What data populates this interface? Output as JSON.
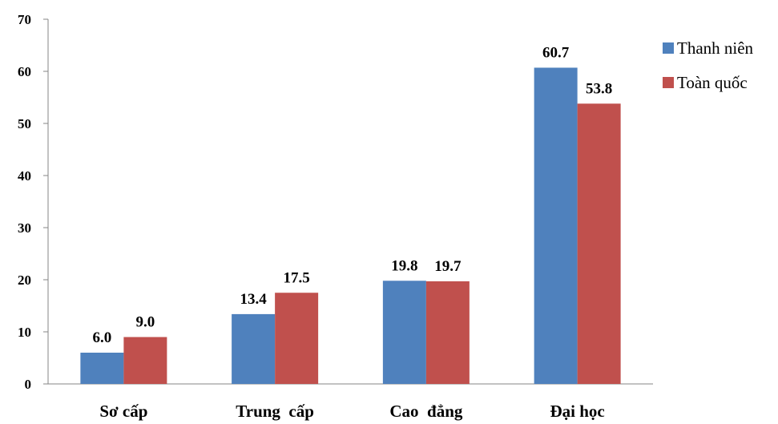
{
  "chart_data": {
    "type": "bar",
    "title": "",
    "xlabel": "",
    "ylabel": "",
    "ylim": [
      0,
      70
    ],
    "yticks": [
      0,
      10,
      20,
      30,
      40,
      50,
      60,
      70
    ],
    "categories": [
      "Sơ cấp",
      "Trung  cấp",
      "Cao  đẳng",
      "Đại học"
    ],
    "series": [
      {
        "name": "Thanh niên",
        "color": "#4f81bd",
        "values": [
          6.0,
          13.4,
          19.8,
          60.7
        ],
        "labels": [
          "6.0",
          "13.4",
          "19.8",
          "60.7"
        ]
      },
      {
        "name": "Toàn quốc",
        "color": "#c0504d",
        "values": [
          9.0,
          17.5,
          19.7,
          53.8
        ],
        "labels": [
          "9.0",
          "17.5",
          "19.7",
          "53.8"
        ]
      }
    ],
    "grid": false,
    "legend_position": "top-right"
  }
}
